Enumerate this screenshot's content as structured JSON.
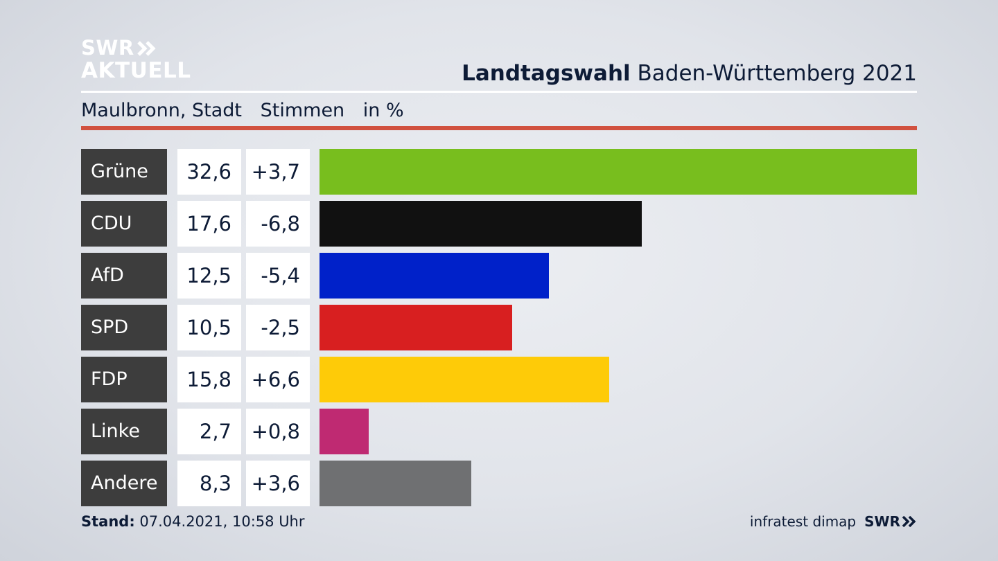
{
  "logo": {
    "line1": "SWR",
    "line2": "AKTUELL"
  },
  "header": {
    "title_bold": "Landtagswahl",
    "title_rest": "Baden-Württemberg 2021"
  },
  "subheader": {
    "location": "Maulbronn, Stadt",
    "measure": "Stimmen",
    "unit": "in %"
  },
  "colors": {
    "rule_red": "#d1513f",
    "label_bg": "#3d3d3d"
  },
  "chart_data": {
    "type": "bar",
    "categories": [
      "Grüne",
      "CDU",
      "AfD",
      "SPD",
      "FDP",
      "Linke",
      "Andere"
    ],
    "values": [
      32.6,
      17.6,
      12.5,
      10.5,
      15.8,
      2.7,
      8.3
    ],
    "value_labels": [
      "32,6",
      "17,6",
      "12,5",
      "10,5",
      "15,8",
      "2,7",
      "8,3"
    ],
    "diff_labels": [
      "+3,7",
      "-6,8",
      "-5,4",
      "-2,5",
      "+6,6",
      "+0,8",
      "+3,6"
    ],
    "bar_colors": [
      "#78be1e",
      "#111111",
      "#0021c9",
      "#d81f20",
      "#fecb08",
      "#bf2a72",
      "#6f7072"
    ],
    "orientation": "horizontal",
    "xlim": [
      0,
      32.6
    ]
  },
  "footer": {
    "stand_label": "Stand:",
    "stand_value": "07.04.2021, 10:58 Uhr",
    "source": "infratest dimap",
    "brand": "SWR"
  }
}
